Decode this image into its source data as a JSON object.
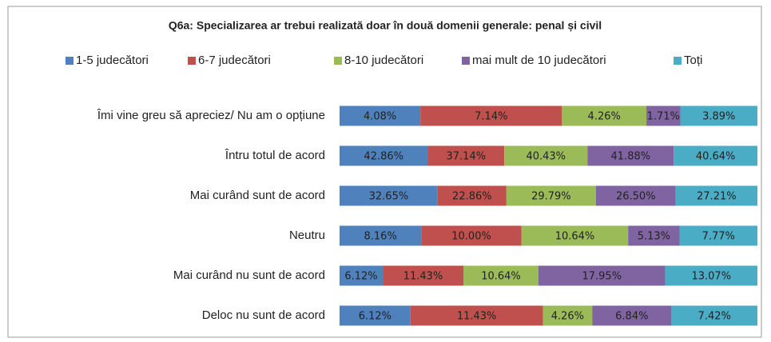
{
  "chart_data": {
    "type": "bar",
    "orientation": "horizontal",
    "stacked": "percent",
    "title": "Q6a: Specializarea ar trebui realizată doar în două domenii generale: penal și civil",
    "legend": "top",
    "categories": [
      "Îmi vine greu să apreciez/ Nu am o opțiune",
      "Întru totul de acord",
      "Mai curând sunt de acord",
      "Neutru",
      "Mai curând nu sunt de acord",
      "Deloc nu sunt de acord"
    ],
    "series": [
      {
        "name": "1-5 judecători",
        "color": "#4f81bd",
        "values": [
          4.08,
          42.86,
          32.65,
          8.16,
          6.12,
          6.12
        ],
        "value_labels": [
          "4.08%",
          "42.86%",
          "32.65%",
          "8.16%",
          "6.12%",
          "6.12%"
        ]
      },
      {
        "name": "6-7 judecători",
        "color": "#c0504d",
        "values": [
          7.14,
          37.14,
          22.86,
          10.0,
          11.43,
          11.43
        ],
        "value_labels": [
          "7.14%",
          "37.14%",
          "22.86%",
          "10.00%",
          "11.43%",
          "11.43%"
        ]
      },
      {
        "name": "8-10 judecători",
        "color": "#9bbb59",
        "values": [
          4.26,
          40.43,
          29.79,
          10.64,
          10.64,
          4.26
        ],
        "value_labels": [
          "4.26%",
          "40.43%",
          "29.79%",
          "10.64%",
          "10.64%",
          "4.26%"
        ]
      },
      {
        "name": "mai mult de 10 judecători",
        "color": "#8064a2",
        "values": [
          1.71,
          41.88,
          26.5,
          5.13,
          17.95,
          6.84
        ],
        "value_labels": [
          "1.71%",
          "41.88%",
          "26.50%",
          "5.13%",
          "17.95%",
          "6.84%"
        ]
      },
      {
        "name": "Toți",
        "color": "#4bacc6",
        "values": [
          3.89,
          40.64,
          27.21,
          7.77,
          13.07,
          7.42
        ],
        "value_labels": [
          "3.89%",
          "40.64%",
          "27.21%",
          "7.77%",
          "13.07%",
          "7.42%"
        ]
      }
    ]
  }
}
